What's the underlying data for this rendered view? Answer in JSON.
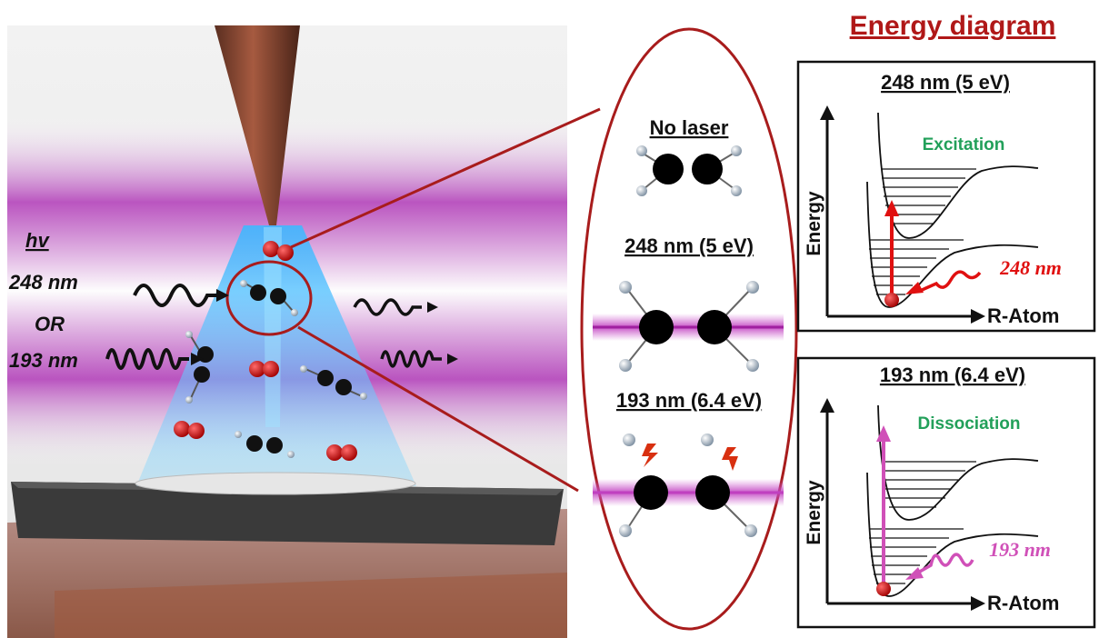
{
  "title": "Energy diagram",
  "left_panel": {
    "hv": "hv",
    "wl1": "248 nm",
    "or": "OR",
    "wl2": "193 nm"
  },
  "oval": {
    "state1": "No laser",
    "state2": "248 nm (5 eV)",
    "state3": "193 nm (6.4 eV)"
  },
  "panel_top": {
    "title": "248 nm (5 eV)",
    "process": "Excitation",
    "y_axis": "Energy",
    "x_axis": "R-Atom",
    "laser": "248 nm"
  },
  "panel_bottom": {
    "title": "193 nm (6.4 eV)",
    "process": "Dissociation",
    "y_axis": "Energy",
    "x_axis": "R-Atom",
    "laser": "193 nm"
  },
  "colors": {
    "title": "#b01818",
    "oval": "#a81c1c",
    "excitation": "#22a05a",
    "arrow248": "#e01010",
    "arrow193": "#d050b8",
    "laser_band": "#a020a0"
  }
}
